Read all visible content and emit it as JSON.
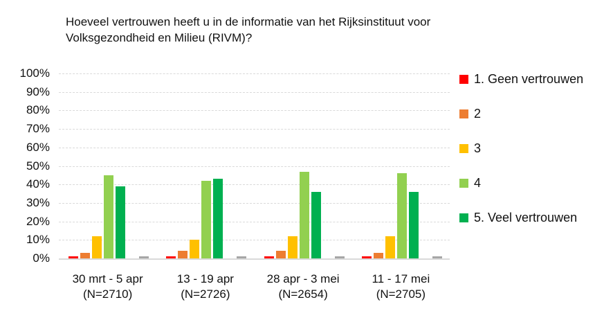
{
  "chart_data": {
    "type": "bar",
    "title": "Hoeveel vertrouwen heeft u in de informatie van het Rijksinstituut voor Volksgezondheid en Milieu (RIVM)?",
    "categories": [
      "30 mrt - 5 apr",
      "13 - 19 apr",
      "28 apr - 3 mei",
      "11 - 17 mei"
    ],
    "category_sublabels": [
      "(N=2710)",
      "(N=2726)",
      "(N=2654)",
      "(N=2705)"
    ],
    "series": [
      {
        "name": "1. Geen vertrouwen",
        "key": "geen-vertrouwen",
        "color": "#ff0000",
        "in_legend": true,
        "values": [
          1,
          1,
          1,
          1
        ]
      },
      {
        "name": "2",
        "key": "2",
        "color": "#ed7d31",
        "in_legend": true,
        "values": [
          3,
          4,
          4,
          3
        ]
      },
      {
        "name": "3",
        "key": "3",
        "color": "#ffc000",
        "in_legend": true,
        "values": [
          12,
          10,
          12,
          12
        ]
      },
      {
        "name": "4",
        "key": "4",
        "color": "#92d050",
        "in_legend": true,
        "values": [
          45,
          42,
          47,
          46
        ]
      },
      {
        "name": "5. Veel vertrouwen",
        "key": "veel-vertrouwen",
        "color": "#00b050",
        "in_legend": true,
        "values": [
          39,
          43,
          36,
          36
        ]
      },
      {
        "name": "",
        "key": "onbenoemd-grijs",
        "color": "#a6a6a6",
        "in_legend": false,
        "values": [
          1,
          1,
          1,
          1
        ]
      }
    ],
    "xlabel": "",
    "ylabel": "",
    "ylim": [
      0,
      100
    ],
    "ytick_step": 10,
    "ytick_suffix": "%",
    "grid": true,
    "gridline_color": "#d9d9d9",
    "legend_position": "right"
  }
}
